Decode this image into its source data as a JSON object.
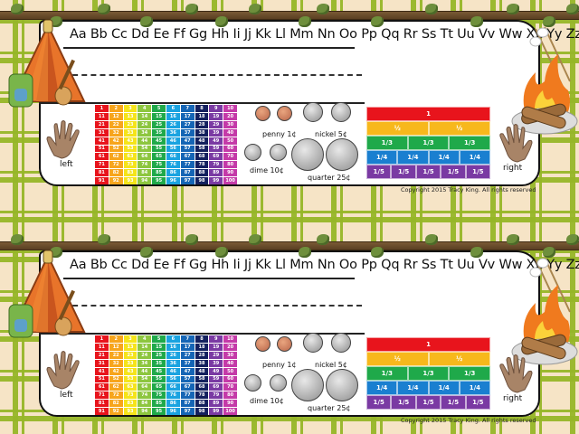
{
  "nameplate": {
    "alphabet": "Aa Bb Cc Dd Ee Ff Gg Hh Ii Jj Kk Ll Mm Nn Oo Pp Qq Rr Ss Tt Uu Vv Ww Xx Yy Zz",
    "left_label": "left",
    "right_label": "right",
    "hundred_chart": {
      "rows": [
        [
          1,
          2,
          3,
          4,
          5,
          6,
          7,
          8,
          9,
          10
        ],
        [
          11,
          12,
          13,
          14,
          15,
          16,
          17,
          18,
          19,
          20
        ],
        [
          21,
          22,
          23,
          24,
          25,
          26,
          27,
          28,
          29,
          30
        ],
        [
          31,
          32,
          33,
          34,
          35,
          36,
          37,
          38,
          39,
          40
        ],
        [
          41,
          42,
          43,
          44,
          45,
          46,
          47,
          48,
          49,
          50
        ],
        [
          51,
          52,
          53,
          54,
          55,
          56,
          57,
          58,
          59,
          60
        ],
        [
          61,
          62,
          63,
          64,
          65,
          66,
          67,
          68,
          69,
          70
        ],
        [
          71,
          72,
          73,
          74,
          75,
          76,
          77,
          78,
          79,
          80
        ],
        [
          81,
          82,
          83,
          84,
          85,
          86,
          87,
          88,
          89,
          90
        ],
        [
          91,
          92,
          93,
          94,
          95,
          96,
          97,
          98,
          99,
          100
        ]
      ],
      "column_colors": [
        "#e8141c",
        "#f7a51c",
        "#f5e41a",
        "#8dc63f",
        "#1fa94a",
        "#1aa3e0",
        "#1565b5",
        "#13205e",
        "#7a3aa3",
        "#c43aa8"
      ]
    },
    "coins": {
      "penny": "penny 1¢",
      "nickel": "nickel 5¢",
      "dime": "dime 10¢",
      "quarter": "quarter 25¢"
    },
    "fraction_bars": [
      {
        "label": "1",
        "parts": 1,
        "color": "#e8141c"
      },
      {
        "label": "½",
        "parts": 2,
        "color": "#f7b81c"
      },
      {
        "label": "1/3",
        "parts": 3,
        "color": "#1fa94a"
      },
      {
        "label": "1/4",
        "parts": 4,
        "color": "#1a7fd0"
      },
      {
        "label": "1/5",
        "parts": 5,
        "color": "#7a3aa3"
      }
    ],
    "copyright": "Copyright 2015 Tracy King.  All rights reserved"
  },
  "copies": 2
}
